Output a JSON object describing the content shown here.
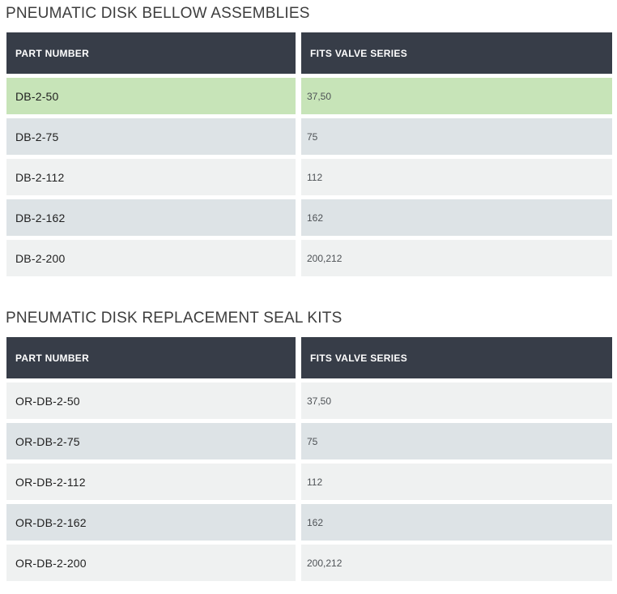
{
  "sections": [
    {
      "title": "PNEUMATIC DISK BELLOW ASSEMBLIES",
      "columns": [
        "PART NUMBER",
        "FITS VALVE SERIES"
      ],
      "rows": [
        {
          "part_number": "DB-2-50",
          "fits_valve_series": "37,50",
          "highlighted": true
        },
        {
          "part_number": "DB-2-75",
          "fits_valve_series": "75",
          "highlighted": false
        },
        {
          "part_number": "DB-2-112",
          "fits_valve_series": "112",
          "highlighted": false
        },
        {
          "part_number": "DB-2-162",
          "fits_valve_series": "162",
          "highlighted": false
        },
        {
          "part_number": "DB-2-200",
          "fits_valve_series": "200,212",
          "highlighted": false
        }
      ]
    },
    {
      "title": "PNEUMATIC DISK REPLACEMENT SEAL KITS",
      "columns": [
        "PART NUMBER",
        "FITS VALVE SERIES"
      ],
      "rows": [
        {
          "part_number": "OR-DB-2-50",
          "fits_valve_series": "37,50",
          "highlighted": false
        },
        {
          "part_number": "OR-DB-2-75",
          "fits_valve_series": "75",
          "highlighted": false
        },
        {
          "part_number": "OR-DB-2-112",
          "fits_valve_series": "112",
          "highlighted": false
        },
        {
          "part_number": "OR-DB-2-162",
          "fits_valve_series": "162",
          "highlighted": false
        },
        {
          "part_number": "OR-DB-2-200",
          "fits_valve_series": "200,212",
          "highlighted": false
        }
      ]
    }
  ],
  "colors": {
    "header_bg": "#373d48",
    "header_text": "#ffffff",
    "row_light_bg": "#eff1f1",
    "row_alt_bg": "#dde3e6",
    "row_highlight_bg": "#c7e4b8",
    "part_number_text": "#1f1f1f",
    "series_text": "#4e5256",
    "title_text": "#3d3d3d"
  }
}
